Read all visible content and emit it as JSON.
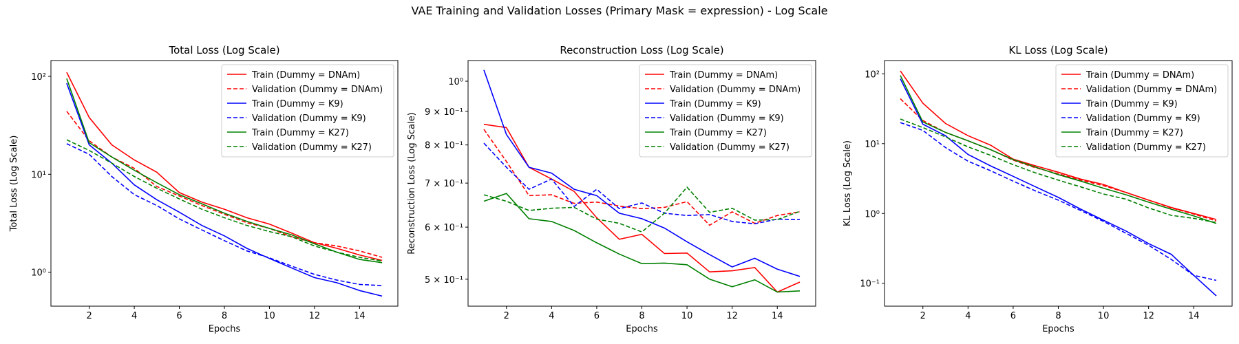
{
  "suptitle": "VAE Training and Validation Losses (Primary Mask = expression) - Log Scale",
  "chart_data": [
    {
      "type": "line",
      "title": "Total Loss (Log Scale)",
      "xlabel": "Epochs",
      "ylabel": "Total Loss (Log Scale)",
      "yscale": "log",
      "xlim": [
        0.3,
        15.7
      ],
      "ylim": [
        0.45,
        145
      ],
      "xticks": [
        2,
        4,
        6,
        8,
        10,
        12,
        14
      ],
      "yticks": [
        {
          "value": 1,
          "label": "10⁰"
        },
        {
          "value": 10,
          "label": "10¹"
        },
        {
          "value": 100,
          "label": "10²"
        }
      ],
      "legend": "top-right",
      "x": [
        1,
        2,
        3,
        4,
        5,
        6,
        7,
        8,
        9,
        10,
        11,
        12,
        13,
        14,
        15
      ],
      "series": [
        {
          "name": "Train (Dummy = DNAm)",
          "color": "#ff0000",
          "dash": "solid",
          "values": [
            110,
            38,
            20,
            14,
            10.5,
            6.5,
            5.2,
            4.4,
            3.6,
            3.1,
            2.5,
            2.0,
            1.75,
            1.5,
            1.32
          ]
        },
        {
          "name": "Validation (Dummy = DNAm)",
          "color": "#ff0000",
          "dash": "dashed",
          "values": [
            44,
            22,
            15,
            11.5,
            7.5,
            6.0,
            4.8,
            3.9,
            3.2,
            2.8,
            2.3,
            2.0,
            1.85,
            1.65,
            1.42
          ]
        },
        {
          "name": "Train (Dummy = K9)",
          "color": "#0000ff",
          "dash": "solid",
          "values": [
            85,
            20,
            13,
            7.8,
            5.5,
            4.1,
            3.0,
            2.35,
            1.75,
            1.38,
            1.1,
            0.88,
            0.78,
            0.65,
            0.57
          ]
        },
        {
          "name": "Validation (Dummy = K9)",
          "color": "#0000ff",
          "dash": "dashed",
          "values": [
            20.5,
            16,
            9.5,
            6.2,
            4.8,
            3.5,
            2.7,
            2.1,
            1.65,
            1.4,
            1.15,
            0.95,
            0.83,
            0.75,
            0.73
          ]
        },
        {
          "name": "Train (Dummy = K27)",
          "color": "#008000",
          "dash": "solid",
          "values": [
            95,
            21,
            15,
            11,
            8.2,
            6.2,
            5.0,
            4.0,
            3.3,
            2.8,
            2.4,
            1.95,
            1.6,
            1.35,
            1.25
          ]
        },
        {
          "name": "Validation (Dummy = K27)",
          "color": "#008000",
          "dash": "dashed",
          "values": [
            22.5,
            17.5,
            13,
            9.5,
            7.2,
            5.6,
            4.4,
            3.6,
            3.0,
            2.6,
            2.3,
            1.85,
            1.6,
            1.42,
            1.3
          ]
        }
      ]
    },
    {
      "type": "line",
      "title": "Reconstruction Loss (Log Scale)",
      "xlabel": "Epochs",
      "ylabel": "Reconstruction Loss (Log Scale)",
      "yscale": "log",
      "xlim": [
        0.3,
        15.7
      ],
      "ylim": [
        0.455,
        1.075
      ],
      "xticks": [
        2,
        4,
        6,
        8,
        10,
        12,
        14
      ],
      "yticks": [
        {
          "value": 0.5,
          "label": "5 × 10⁻¹"
        },
        {
          "value": 0.6,
          "label": "6 × 10⁻¹"
        },
        {
          "value": 0.7,
          "label": "7 × 10⁻¹"
        },
        {
          "value": 0.8,
          "label": "8 × 10⁻¹"
        },
        {
          "value": 0.9,
          "label": "9 × 10⁻¹"
        },
        {
          "value": 1.0,
          "label": "10⁰"
        }
      ],
      "legend": "top-right",
      "x": [
        1,
        2,
        3,
        4,
        5,
        6,
        7,
        8,
        9,
        10,
        11,
        12,
        13,
        14,
        15
      ],
      "series": [
        {
          "name": "Train (Dummy = DNAm)",
          "color": "#ff0000",
          "dash": "solid",
          "values": [
            0.86,
            0.85,
            0.74,
            0.71,
            0.68,
            0.62,
            0.575,
            0.585,
            0.547,
            0.548,
            0.513,
            0.515,
            0.521,
            0.478,
            0.495
          ]
        },
        {
          "name": "Validation (Dummy = DNAm)",
          "color": "#ff0000",
          "dash": "dashed",
          "values": [
            0.845,
            0.755,
            0.67,
            0.672,
            0.652,
            0.655,
            0.646,
            0.64,
            0.643,
            0.656,
            0.604,
            0.633,
            0.608,
            0.625,
            0.633
          ]
        },
        {
          "name": "Train (Dummy = K9)",
          "color": "#0000ff",
          "dash": "solid",
          "values": [
            1.04,
            0.83,
            0.74,
            0.725,
            0.685,
            0.67,
            0.63,
            0.618,
            0.598,
            0.57,
            0.545,
            0.522,
            0.538,
            0.518,
            0.505
          ]
        },
        {
          "name": "Validation (Dummy = K9)",
          "color": "#0000ff",
          "dash": "dashed",
          "values": [
            0.805,
            0.74,
            0.685,
            0.71,
            0.645,
            0.685,
            0.64,
            0.653,
            0.63,
            0.625,
            0.627,
            0.612,
            0.607,
            0.617,
            0.616
          ]
        },
        {
          "name": "Train (Dummy = K27)",
          "color": "#008000",
          "dash": "solid",
          "values": [
            0.657,
            0.675,
            0.618,
            0.612,
            0.593,
            0.568,
            0.546,
            0.528,
            0.529,
            0.526,
            0.5,
            0.487,
            0.499,
            0.478,
            0.48
          ]
        },
        {
          "name": "Validation (Dummy = K27)",
          "color": "#008000",
          "dash": "dashed",
          "values": [
            0.672,
            0.657,
            0.636,
            0.641,
            0.643,
            0.617,
            0.608,
            0.59,
            0.63,
            0.69,
            0.632,
            0.641,
            0.615,
            0.616,
            0.634
          ]
        }
      ]
    },
    {
      "type": "line",
      "title": "KL Loss (Log Scale)",
      "xlabel": "Epochs",
      "ylabel": "KL Loss (Log Scale)",
      "yscale": "log",
      "xlim": [
        0.3,
        15.7
      ],
      "ylim": [
        0.047,
        155
      ],
      "xticks": [
        2,
        4,
        6,
        8,
        10,
        12,
        14
      ],
      "yticks": [
        {
          "value": 0.1,
          "label": "10⁻¹"
        },
        {
          "value": 1,
          "label": "10⁰"
        },
        {
          "value": 10,
          "label": "10¹"
        },
        {
          "value": 100,
          "label": "10²"
        }
      ],
      "legend": "top-right",
      "x": [
        1,
        2,
        3,
        4,
        5,
        6,
        7,
        8,
        9,
        10,
        11,
        12,
        13,
        14,
        15
      ],
      "series": [
        {
          "name": "Train (Dummy = DNAm)",
          "color": "#ff0000",
          "dash": "solid",
          "values": [
            110,
            38,
            19.5,
            13,
            9.5,
            6.0,
            4.8,
            3.9,
            3.1,
            2.6,
            2.0,
            1.55,
            1.22,
            1.0,
            0.82
          ]
        },
        {
          "name": "Validation (Dummy = DNAm)",
          "color": "#ff0000",
          "dash": "dashed",
          "values": [
            44,
            21.5,
            14.5,
            11,
            8.2,
            5.8,
            4.5,
            3.7,
            3.0,
            2.5,
            2.0,
            1.55,
            1.2,
            0.98,
            0.78
          ]
        },
        {
          "name": "Train (Dummy = K9)",
          "color": "#0000ff",
          "dash": "solid",
          "values": [
            85,
            19,
            13,
            7.0,
            4.8,
            3.4,
            2.4,
            1.7,
            1.15,
            0.8,
            0.56,
            0.37,
            0.26,
            0.13,
            0.066
          ]
        },
        {
          "name": "Validation (Dummy = K9)",
          "color": "#0000ff",
          "dash": "dashed",
          "values": [
            20,
            15.5,
            8.8,
            5.6,
            4.1,
            2.9,
            2.1,
            1.55,
            1.1,
            0.77,
            0.52,
            0.35,
            0.22,
            0.13,
            0.11
          ]
        },
        {
          "name": "Train (Dummy = K27)",
          "color": "#008000",
          "dash": "solid",
          "values": [
            95,
            20.5,
            14.5,
            11,
            8.2,
            5.9,
            4.6,
            3.6,
            2.9,
            2.3,
            1.85,
            1.45,
            1.15,
            0.92,
            0.72
          ]
        },
        {
          "name": "Validation (Dummy = K27)",
          "color": "#008000",
          "dash": "dashed",
          "values": [
            22.5,
            17,
            12.5,
            9.0,
            6.8,
            5.0,
            3.8,
            3.0,
            2.4,
            1.9,
            1.6,
            1.2,
            0.94,
            0.85,
            0.74
          ]
        }
      ]
    }
  ]
}
